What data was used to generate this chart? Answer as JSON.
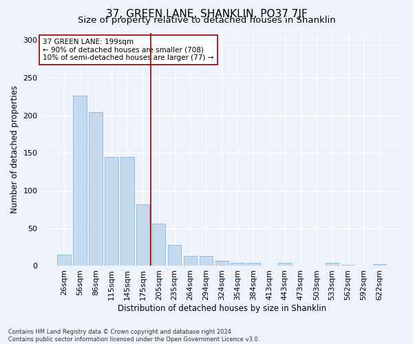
{
  "title": "37, GREEN LANE, SHANKLIN, PO37 7JF",
  "subtitle": "Size of property relative to detached houses in Shanklin",
  "xlabel": "Distribution of detached houses by size in Shanklin",
  "ylabel": "Number of detached properties",
  "categories": [
    "26sqm",
    "56sqm",
    "86sqm",
    "115sqm",
    "145sqm",
    "175sqm",
    "205sqm",
    "235sqm",
    "264sqm",
    "294sqm",
    "324sqm",
    "354sqm",
    "384sqm",
    "413sqm",
    "443sqm",
    "473sqm",
    "503sqm",
    "533sqm",
    "562sqm",
    "592sqm",
    "622sqm"
  ],
  "values": [
    15,
    226,
    204,
    145,
    145,
    82,
    56,
    28,
    13,
    13,
    7,
    4,
    4,
    0,
    4,
    0,
    0,
    4,
    1,
    0,
    2
  ],
  "bar_color": "#c5d9ef",
  "bar_edge_color": "#8ab4d8",
  "vline_color": "#8b0000",
  "annotation_text": "37 GREEN LANE: 199sqm\n← 90% of detached houses are smaller (708)\n10% of semi-detached houses are larger (77) →",
  "annotation_box_color": "#ffffff",
  "annotation_box_edgecolor": "#8b0000",
  "ylim": [
    0,
    310
  ],
  "yticks": [
    0,
    50,
    100,
    150,
    200,
    250,
    300
  ],
  "footnote": "Contains HM Land Registry data © Crown copyright and database right 2024.\nContains public sector information licensed under the Open Government Licence v3.0.",
  "bg_color": "#eef2fb",
  "grid_color": "#ffffff",
  "title_fontsize": 11,
  "subtitle_fontsize": 9.5,
  "label_fontsize": 8.5,
  "tick_fontsize": 8,
  "footnote_fontsize": 6
}
